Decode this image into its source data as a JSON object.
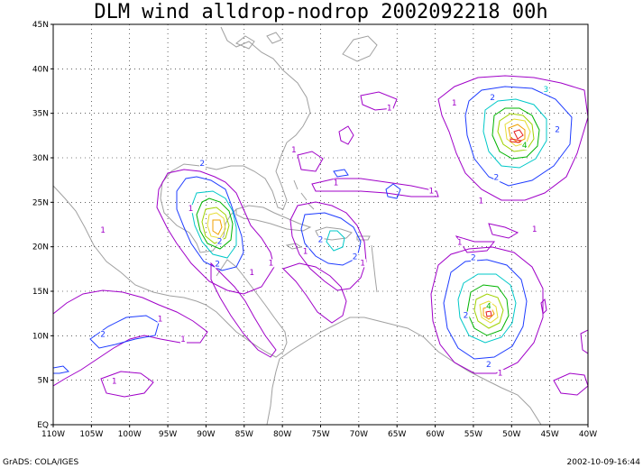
{
  "title": "DLM wind alldrop-nodrop 2002092218 00h",
  "footer_left": "GrADS: COLA/IGES",
  "footer_right": "2002-10-09-16:44",
  "lat_labels": [
    "EQ",
    "5N",
    "10N",
    "15N",
    "20N",
    "25N",
    "30N",
    "35N",
    "40N",
    "45N"
  ],
  "lon_labels": [
    "110W",
    "105W",
    "100W",
    "95W",
    "90W",
    "85W",
    "80W",
    "75W",
    "70W",
    "65W",
    "60W",
    "55W",
    "50W",
    "45W",
    "40W"
  ],
  "colors": {
    "level_1": "#a000c8",
    "level_2": "#1e3cff",
    "level_3": "#00c8c8",
    "level_4": "#00b400",
    "level_5": "#a0d200",
    "level_6": "#e6dc32",
    "level_7": "#f0a000",
    "level_8": "#e61e1e",
    "coastline": "#a0a0a0"
  },
  "contour_labels": [
    {
      "text": "1",
      "lon": -103.5,
      "lat": 21.6
    },
    {
      "text": "1",
      "lon": -92.0,
      "lat": 24.0
    },
    {
      "text": "2",
      "lon": -90.5,
      "lat": 29.1
    },
    {
      "text": "2",
      "lon": -88.2,
      "lat": 20.3
    },
    {
      "text": "2",
      "lon": -88.5,
      "lat": 17.8
    },
    {
      "text": "1",
      "lon": -78.5,
      "lat": 30.6
    },
    {
      "text": "1",
      "lon": -73.0,
      "lat": 26.9
    },
    {
      "text": "1",
      "lon": -77.0,
      "lat": 19.2
    },
    {
      "text": "2",
      "lon": -75.0,
      "lat": 20.5
    },
    {
      "text": "2",
      "lon": -70.5,
      "lat": 18.6
    },
    {
      "text": "1",
      "lon": -69.5,
      "lat": 17.9
    },
    {
      "text": "1",
      "lon": -84.0,
      "lat": 16.8
    },
    {
      "text": "1",
      "lon": -81.5,
      "lat": 17.9
    },
    {
      "text": "1",
      "lon": -96.0,
      "lat": 11.6
    },
    {
      "text": "2",
      "lon": -103.5,
      "lat": 9.9
    },
    {
      "text": "1",
      "lon": -102.0,
      "lat": 4.6
    },
    {
      "text": "1",
      "lon": -93.0,
      "lat": 9.3
    },
    {
      "text": "1",
      "lon": -66.0,
      "lat": 35.3
    },
    {
      "text": "1",
      "lon": -60.5,
      "lat": 26.0
    },
    {
      "text": "1",
      "lon": -57.5,
      "lat": 35.9
    },
    {
      "text": "2",
      "lon": -52.5,
      "lat": 36.5
    },
    {
      "text": "3",
      "lon": -45.5,
      "lat": 37.4
    },
    {
      "text": "2",
      "lon": -44.0,
      "lat": 32.9
    },
    {
      "text": "4",
      "lon": -48.3,
      "lat": 31.1
    },
    {
      "text": "2",
      "lon": -52.0,
      "lat": 27.5
    },
    {
      "text": "1",
      "lon": -54.0,
      "lat": 24.9
    },
    {
      "text": "1",
      "lon": -56.8,
      "lat": 20.2
    },
    {
      "text": "2",
      "lon": -55.0,
      "lat": 18.5
    },
    {
      "text": "2",
      "lon": -56.0,
      "lat": 12.0
    },
    {
      "text": "4",
      "lon": -53.0,
      "lat": 13.0
    },
    {
      "text": "2",
      "lon": -53.0,
      "lat": 6.5
    },
    {
      "text": "1",
      "lon": -47.0,
      "lat": 21.7
    },
    {
      "text": "1",
      "lon": -51.5,
      "lat": 5.5
    }
  ]
}
